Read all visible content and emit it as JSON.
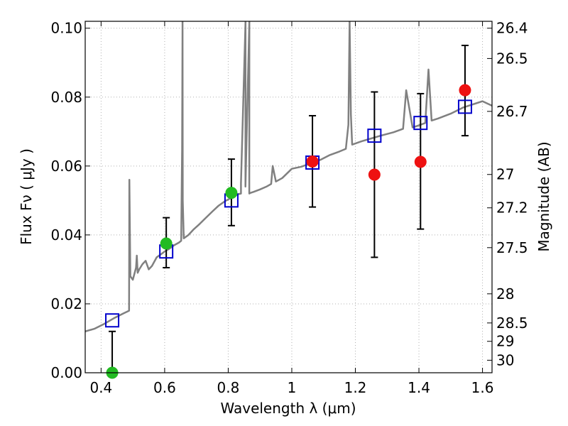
{
  "chart_data": {
    "type": "scatter",
    "xlabel": "Wavelength  λ (μm)",
    "ylabel": "Flux  Fν ( μJy )",
    "y2label": "Magnitude (AB)",
    "xlim": [
      0.35,
      1.63
    ],
    "ylim": [
      0.0,
      0.102
    ],
    "grid": true,
    "x_ticks": [
      0.4,
      0.6,
      0.8,
      1.0,
      1.2,
      1.4,
      1.6
    ],
    "x_tick_labels": [
      "0.4",
      "0.6",
      "0.8",
      "1",
      "1.2",
      "1.4",
      "1.6"
    ],
    "y_ticks": [
      0.0,
      0.02,
      0.04,
      0.06,
      0.08,
      0.1
    ],
    "y_tick_labels": [
      "0.00",
      "0.02",
      "0.04",
      "0.06",
      "0.08",
      "0.10"
    ],
    "mag_ticks": [
      {
        "label": "26.4",
        "value": 26.4
      },
      {
        "label": "26.5",
        "value": 26.5
      },
      {
        "label": "26.7",
        "value": 26.7
      },
      {
        "label": "27",
        "value": 27.0
      },
      {
        "label": "27.2",
        "value": 27.2
      },
      {
        "label": "27.5",
        "value": 27.5
      },
      {
        "label": "28",
        "value": 28.0
      },
      {
        "label": "28.5",
        "value": 28.5
      },
      {
        "label": "29",
        "value": 29.0
      },
      {
        "label": "30",
        "value": 30.0
      }
    ],
    "colors": {
      "model": "#808080",
      "model_points": "#0000cc",
      "green_points": "#22bb22",
      "red_points": "#ee1111",
      "errorbars": "#000000",
      "grid": "#b0b0b0"
    },
    "series": [
      {
        "marker": "open-square",
        "x": [
          0.435,
          0.605,
          0.81,
          1.065,
          1.26,
          1.405,
          1.545
        ],
        "y": [
          0.0152,
          0.0352,
          0.05,
          0.061,
          0.0688,
          0.0725,
          0.0772
        ]
      },
      {
        "marker": "filled-circle",
        "x": [
          0.435,
          0.605,
          0.81
        ],
        "y": [
          0.0,
          0.0375,
          0.0522
        ],
        "yerr_low": [
          0.0,
          0.007,
          0.0095
        ],
        "yerr_high": [
          0.012,
          0.0075,
          0.0098
        ]
      },
      {
        "marker": "filled-circle",
        "x": [
          1.065,
          1.26,
          1.405,
          1.545
        ],
        "y": [
          0.0613,
          0.0575,
          0.0612,
          0.082
        ],
        "yerr_low": [
          0.0132,
          0.024,
          0.0195,
          0.0132
        ],
        "yerr_high": [
          0.0133,
          0.024,
          0.0198,
          0.013
        ]
      },
      {
        "marker": "line",
        "x": [
          0.35,
          0.38,
          0.41,
          0.44,
          0.47,
          0.488,
          0.489,
          0.492,
          0.5,
          0.51,
          0.5125,
          0.515,
          0.52,
          0.53,
          0.54,
          0.55,
          0.56,
          0.575,
          0.59,
          0.6,
          0.615,
          0.63,
          0.645,
          0.652,
          0.655,
          0.6563,
          0.657,
          0.66,
          0.675,
          0.69,
          0.71,
          0.73,
          0.75,
          0.77,
          0.79,
          0.81,
          0.83,
          0.84,
          0.84,
          0.8545,
          0.8542,
          0.8665,
          0.8662,
          0.87,
          0.88,
          0.9,
          0.92,
          0.935,
          0.94,
          0.95,
          0.97,
          1.0,
          1.03,
          1.06,
          1.09,
          1.12,
          1.15,
          1.17,
          1.178,
          1.182,
          1.186,
          1.19,
          1.22,
          1.25,
          1.28,
          1.32,
          1.35,
          1.36,
          1.38,
          1.4,
          1.42,
          1.43,
          1.44,
          1.46,
          1.5,
          1.54,
          1.58,
          1.6,
          1.63
        ],
        "y": [
          0.012,
          0.0128,
          0.0142,
          0.0158,
          0.0172,
          0.018,
          0.056,
          0.028,
          0.027,
          0.0305,
          0.034,
          0.029,
          0.03,
          0.0315,
          0.0325,
          0.03,
          0.031,
          0.0335,
          0.0345,
          0.0352,
          0.036,
          0.037,
          0.0378,
          0.0383,
          0.065,
          0.102,
          0.05,
          0.039,
          0.04,
          0.0415,
          0.0432,
          0.045,
          0.0468,
          0.0485,
          0.0498,
          0.0508,
          0.0518,
          0.052,
          0.055,
          0.102,
          0.054,
          0.102,
          0.052,
          0.0522,
          0.0525,
          0.0532,
          0.054,
          0.0548,
          0.06,
          0.0555,
          0.0565,
          0.0592,
          0.0598,
          0.0608,
          0.0618,
          0.0632,
          0.0642,
          0.065,
          0.072,
          0.102,
          0.075,
          0.0662,
          0.0672,
          0.068,
          0.0688,
          0.0698,
          0.0708,
          0.082,
          0.0712,
          0.0718,
          0.0725,
          0.088,
          0.0732,
          0.0738,
          0.0752,
          0.077,
          0.0782,
          0.0788,
          0.0775
        ]
      }
    ]
  }
}
